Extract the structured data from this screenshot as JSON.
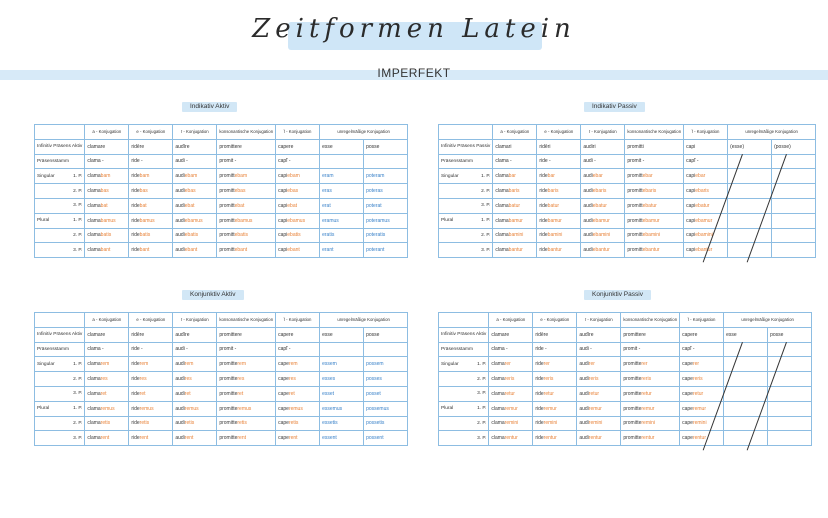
{
  "title": "Zeitformen Latein",
  "section": "IMPERFEKT",
  "columns": [
    "a - Konjugation",
    "e - Konjugation",
    "ī - Konjugation",
    "konsonantische Konjugation",
    "ĭ - Konjugation",
    "unregelmäßige Konjugation"
  ],
  "row_labels": {
    "infinitiv": "Infinitiv Präsens Aktiv",
    "infinitiv_passiv": "Infinitiv Präsens Passiv",
    "praesensstamm": "Präsensstamm",
    "singular": "Singular",
    "plural": "Plural",
    "p1": "1. P.",
    "p2": "2. P.",
    "p3": "3. P."
  },
  "colors": {
    "stem": "#3a3a3a",
    "ending": "#e8833a",
    "irregular": "#3a82c9",
    "grid": "#8dbde2",
    "highlight": "#d2e7f6"
  },
  "tables": [
    {
      "label": "Indikativ Aktiv",
      "infinitiv": [
        "clamare",
        "ridēre",
        "audīre",
        "promittere",
        "capere",
        "esse",
        "posse"
      ],
      "stamm": [
        "clama -",
        "ride -",
        "audi -",
        "promit -",
        "capĭ -",
        "",
        ""
      ],
      "forms": [
        [
          [
            "clama",
            "bam"
          ],
          [
            "ride",
            "bam"
          ],
          [
            "audi",
            "ebam"
          ],
          [
            "promitt",
            "ebam"
          ],
          [
            "capi",
            "ebam"
          ],
          [
            "",
            "eram"
          ],
          [
            "",
            "poteram"
          ]
        ],
        [
          [
            "clama",
            "bas"
          ],
          [
            "ride",
            "bas"
          ],
          [
            "audi",
            "ebas"
          ],
          [
            "promitt",
            "ebas"
          ],
          [
            "capi",
            "ebas"
          ],
          [
            "",
            "eras"
          ],
          [
            "",
            "poteras"
          ]
        ],
        [
          [
            "clama",
            "bat"
          ],
          [
            "ride",
            "bat"
          ],
          [
            "audi",
            "ebat"
          ],
          [
            "promitt",
            "ebat"
          ],
          [
            "capi",
            "ebat"
          ],
          [
            "",
            "erat"
          ],
          [
            "",
            "poterat"
          ]
        ],
        [
          [
            "clama",
            "bamus"
          ],
          [
            "ride",
            "bamus"
          ],
          [
            "audi",
            "ebamus"
          ],
          [
            "promitt",
            "ebamus"
          ],
          [
            "capi",
            "ebamus"
          ],
          [
            "",
            "eramus"
          ],
          [
            "",
            "poteramus"
          ]
        ],
        [
          [
            "clama",
            "batis"
          ],
          [
            "ride",
            "batis"
          ],
          [
            "audi",
            "ebatis"
          ],
          [
            "promitt",
            "ebatis"
          ],
          [
            "capi",
            "ebatis"
          ],
          [
            "",
            "eratis"
          ],
          [
            "",
            "poteratis"
          ]
        ],
        [
          [
            "clama",
            "bant"
          ],
          [
            "ride",
            "bant"
          ],
          [
            "audi",
            "ebant"
          ],
          [
            "promitt",
            "ebant"
          ],
          [
            "capi",
            "ebant"
          ],
          [
            "",
            "erant"
          ],
          [
            "",
            "poterant"
          ]
        ]
      ]
    },
    {
      "label": "Indikativ Passiv",
      "infinitiv": [
        "clamari",
        "ridēri",
        "audiri",
        "promitti",
        "capi",
        "(esse)",
        "(posse)"
      ],
      "stamm": [
        "clama -",
        "ride -",
        "audi -",
        "promit -",
        "capĭ -",
        "",
        ""
      ],
      "forms": [
        [
          [
            "clama",
            "bar"
          ],
          [
            "ride",
            "bar"
          ],
          [
            "audi",
            "ebar"
          ],
          [
            "promitt",
            "ebar"
          ],
          [
            "capi",
            "ebar"
          ],
          [
            "",
            ""
          ],
          [
            "",
            ""
          ]
        ],
        [
          [
            "clama",
            "baris"
          ],
          [
            "ride",
            "baris"
          ],
          [
            "audi",
            "ebaris"
          ],
          [
            "promitt",
            "ebaris"
          ],
          [
            "capi",
            "ebaris"
          ],
          [
            "",
            ""
          ],
          [
            "",
            ""
          ]
        ],
        [
          [
            "clama",
            "batur"
          ],
          [
            "ride",
            "batur"
          ],
          [
            "audi",
            "ebatur"
          ],
          [
            "promitt",
            "ebatur"
          ],
          [
            "capi",
            "ebatur"
          ],
          [
            "",
            ""
          ],
          [
            "",
            ""
          ]
        ],
        [
          [
            "clama",
            "bamur"
          ],
          [
            "ride",
            "bamur"
          ],
          [
            "audi",
            "ebamur"
          ],
          [
            "promitt",
            "ebamur"
          ],
          [
            "capi",
            "ebamur"
          ],
          [
            "",
            ""
          ],
          [
            "",
            ""
          ]
        ],
        [
          [
            "clama",
            "bamini"
          ],
          [
            "ride",
            "bamini"
          ],
          [
            "audi",
            "ebamini"
          ],
          [
            "promitt",
            "ebamini"
          ],
          [
            "capi",
            "ebamini"
          ],
          [
            "",
            ""
          ],
          [
            "",
            ""
          ]
        ],
        [
          [
            "clama",
            "bantur"
          ],
          [
            "ride",
            "bantur"
          ],
          [
            "audi",
            "ebantur"
          ],
          [
            "promitt",
            "ebantur"
          ],
          [
            "capi",
            "ebantur"
          ],
          [
            "",
            ""
          ],
          [
            "",
            ""
          ]
        ]
      ]
    },
    {
      "label": "Konjunktiv Aktiv",
      "infinitiv": [
        "clamare",
        "ridēre",
        "audīre",
        "promittere",
        "capere",
        "esse",
        "posse"
      ],
      "stamm": [
        "clama -",
        "ride -",
        "audi -",
        "promit -",
        "capĭ -",
        "",
        ""
      ],
      "forms": [
        [
          [
            "clama",
            "rem"
          ],
          [
            "ride",
            "rem"
          ],
          [
            "audi",
            "rem"
          ],
          [
            "promitte",
            "rem"
          ],
          [
            "cape",
            "rem"
          ],
          [
            "",
            "essem"
          ],
          [
            "",
            "possem"
          ]
        ],
        [
          [
            "clama",
            "res"
          ],
          [
            "ride",
            "res"
          ],
          [
            "audi",
            "res"
          ],
          [
            "promitte",
            "res"
          ],
          [
            "cape",
            "res"
          ],
          [
            "",
            "esses"
          ],
          [
            "",
            "posses"
          ]
        ],
        [
          [
            "clama",
            "ret"
          ],
          [
            "ride",
            "ret"
          ],
          [
            "audi",
            "ret"
          ],
          [
            "promitte",
            "ret"
          ],
          [
            "cape",
            "ret"
          ],
          [
            "",
            "esset"
          ],
          [
            "",
            "posset"
          ]
        ],
        [
          [
            "clama",
            "remus"
          ],
          [
            "ride",
            "remus"
          ],
          [
            "audi",
            "remus"
          ],
          [
            "promitte",
            "remus"
          ],
          [
            "cape",
            "remus"
          ],
          [
            "",
            "essemus"
          ],
          [
            "",
            "possemus"
          ]
        ],
        [
          [
            "clama",
            "retis"
          ],
          [
            "ride",
            "retis"
          ],
          [
            "audi",
            "retis"
          ],
          [
            "promitte",
            "retis"
          ],
          [
            "cape",
            "retis"
          ],
          [
            "",
            "essetis"
          ],
          [
            "",
            "possetis"
          ]
        ],
        [
          [
            "clama",
            "rent"
          ],
          [
            "ride",
            "rent"
          ],
          [
            "audi",
            "rent"
          ],
          [
            "promitte",
            "rent"
          ],
          [
            "cape",
            "rent"
          ],
          [
            "",
            "essent"
          ],
          [
            "",
            "possent"
          ]
        ]
      ]
    },
    {
      "label": "Konjunktiv Passiv",
      "infinitiv": [
        "clamare",
        "ridēre",
        "audīre",
        "promittere",
        "capere",
        "esse",
        "posse"
      ],
      "stamm": [
        "clama -",
        "ride -",
        "audi -",
        "promit -",
        "capĭ -",
        "",
        ""
      ],
      "forms": [
        [
          [
            "clama",
            "rer"
          ],
          [
            "ride",
            "rer"
          ],
          [
            "audi",
            "rer"
          ],
          [
            "promitte",
            "rer"
          ],
          [
            "cape",
            "rer"
          ],
          [
            "",
            ""
          ],
          [
            "",
            ""
          ]
        ],
        [
          [
            "clama",
            "reris"
          ],
          [
            "ride",
            "reris"
          ],
          [
            "audi",
            "reris"
          ],
          [
            "promitte",
            "reris"
          ],
          [
            "cape",
            "reris"
          ],
          [
            "",
            ""
          ],
          [
            "",
            ""
          ]
        ],
        [
          [
            "clama",
            "retur"
          ],
          [
            "ride",
            "retur"
          ],
          [
            "audi",
            "retur"
          ],
          [
            "promitte",
            "retur"
          ],
          [
            "cape",
            "retur"
          ],
          [
            "",
            ""
          ],
          [
            "",
            ""
          ]
        ],
        [
          [
            "clama",
            "remur"
          ],
          [
            "ride",
            "remur"
          ],
          [
            "audi",
            "remur"
          ],
          [
            "promitte",
            "remur"
          ],
          [
            "cape",
            "remur"
          ],
          [
            "",
            ""
          ],
          [
            "",
            ""
          ]
        ],
        [
          [
            "clama",
            "remini"
          ],
          [
            "ride",
            "remini"
          ],
          [
            "audi",
            "remini"
          ],
          [
            "promitte",
            "remini"
          ],
          [
            "cape",
            "remini"
          ],
          [
            "",
            ""
          ],
          [
            "",
            ""
          ]
        ],
        [
          [
            "clama",
            "rentur"
          ],
          [
            "ride",
            "rentur"
          ],
          [
            "audi",
            "rentur"
          ],
          [
            "promitte",
            "rentur"
          ],
          [
            "cape",
            "rentur"
          ],
          [
            "",
            ""
          ],
          [
            "",
            ""
          ]
        ]
      ]
    }
  ]
}
